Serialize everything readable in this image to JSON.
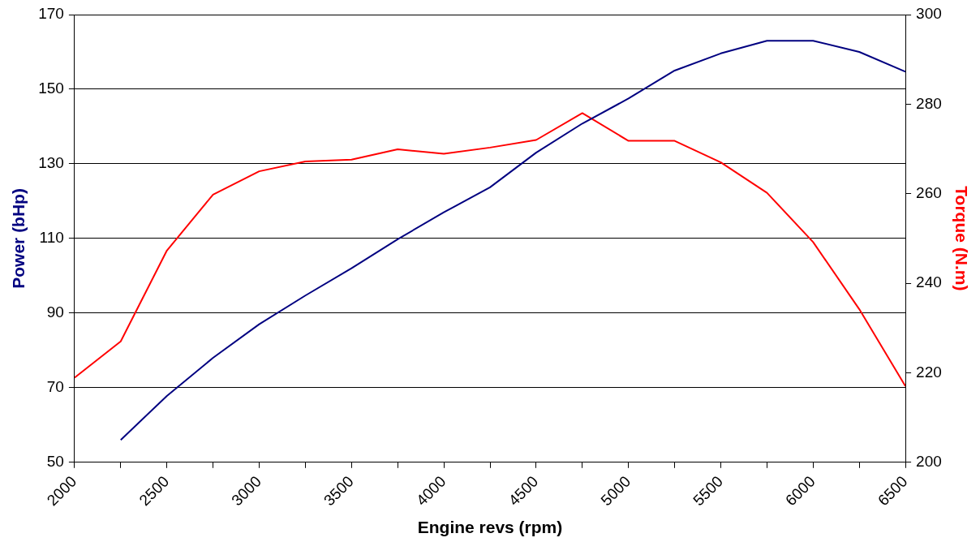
{
  "chart_data": {
    "type": "line",
    "xlabel": "Engine revs (rpm)",
    "ylabel": "Power (bHp)",
    "y2label": "Torque (N.m)",
    "x": [
      2000,
      2250,
      2500,
      2750,
      3000,
      3250,
      3500,
      3750,
      4000,
      4250,
      4500,
      4750,
      5000,
      5250,
      5500,
      5750,
      6000,
      6250,
      6500
    ],
    "series": [
      {
        "color": "#000080",
        "values": [
          null,
          56,
          67.8,
          78,
          87,
          94.7,
          102,
          109.8,
          117,
          123.7,
          133,
          140.8,
          147.5,
          155,
          159.6,
          163,
          163,
          160,
          154.7
        ]
      },
      {
        "color": "#ff0000",
        "axis": "y2",
        "values": [
          218.9,
          227,
          247.3,
          259.8,
          265,
          267.2,
          267.6,
          269.9,
          268.9,
          270.3,
          272,
          278,
          271.8,
          271.8,
          267,
          260.2,
          249.2,
          234.2,
          217
        ]
      }
    ],
    "xlim": [
      2000,
      6500
    ],
    "xticks": [
      2000,
      {
        "value": 2250,
        "label": null
      },
      2500,
      {
        "value": 2750,
        "label": null
      },
      3000,
      {
        "value": 3250,
        "label": null
      },
      3500,
      {
        "value": 3750,
        "label": null
      },
      4000,
      {
        "value": 4250,
        "label": null
      },
      4500,
      {
        "value": 4750,
        "label": null
      },
      5000,
      {
        "value": 5250,
        "label": null
      },
      5500,
      {
        "value": 5750,
        "label": null
      },
      6000,
      {
        "value": 6250,
        "label": null
      },
      6500
    ],
    "ylim": [
      50,
      170
    ],
    "yticks": [
      50,
      70,
      90,
      110,
      130,
      150,
      170
    ],
    "y2lim": [
      200,
      300
    ],
    "y2ticks": [
      200,
      220,
      240,
      260,
      280,
      300
    ],
    "grid": "y",
    "legend": false,
    "marker": "none",
    "line_style": "solid"
  }
}
